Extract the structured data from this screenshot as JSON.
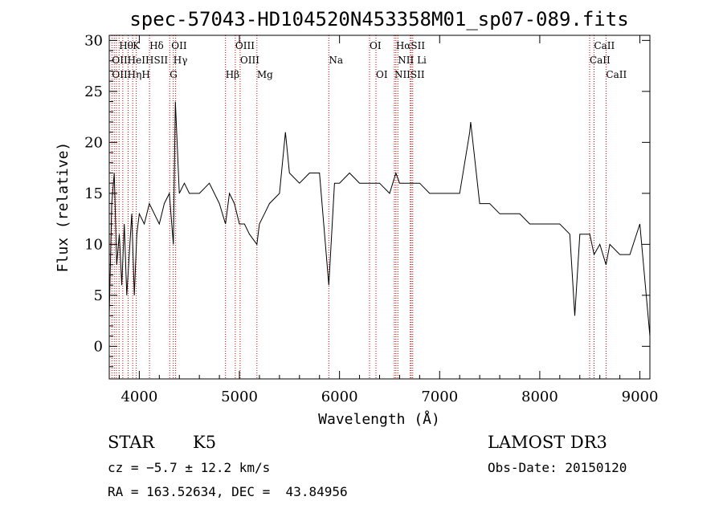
{
  "chart_data": {
    "type": "line",
    "title": "spec-57043-HD104520N453358M01_sp07-089.fits",
    "xlabel": "Wavelength (Å)",
    "ylabel": "Flux (relative)",
    "xlim": [
      3700,
      9100
    ],
    "ylim": [
      -3.2,
      30.5
    ],
    "xticks": [
      4000,
      5000,
      6000,
      7000,
      8000,
      9000
    ],
    "yticks": [
      0,
      5,
      10,
      15,
      20,
      25,
      30
    ],
    "grid": false,
    "series": [
      {
        "x": [
          3700,
          3725,
          3750,
          3775,
          3800,
          3825,
          3850,
          3875,
          3900,
          3925,
          3950,
          3975,
          4000,
          4050,
          4100,
          4150,
          4200,
          4250,
          4300,
          4340,
          4360,
          4400,
          4450,
          4500,
          4600,
          4700,
          4800,
          4861,
          4900,
          4950,
          5000,
          5050,
          5100,
          5175,
          5200,
          5250,
          5300,
          5400,
          5460,
          5500,
          5600,
          5700,
          5800,
          5893,
          5950,
          6000,
          6100,
          6200,
          6300,
          6400,
          6500,
          6563,
          6600,
          6700,
          6800,
          6900,
          7000,
          7100,
          7200,
          7300,
          7310,
          7400,
          7500,
          7600,
          7700,
          7800,
          7900,
          8000,
          8100,
          8200,
          8300,
          8350,
          8400,
          8500,
          8542,
          8600,
          8662,
          8700,
          8800,
          8900,
          9000,
          9100
        ],
        "y": [
          3,
          14,
          17,
          8,
          11,
          6,
          12,
          5,
          9,
          13,
          5,
          11,
          13,
          12,
          14,
          13,
          12,
          14,
          15,
          10,
          24,
          15,
          16,
          15,
          15,
          16,
          14,
          12,
          15,
          14,
          12,
          12,
          11,
          10,
          12,
          13,
          14,
          15,
          21,
          17,
          16,
          17,
          17,
          6,
          16,
          16,
          17,
          16,
          16,
          16,
          15,
          17,
          16,
          16,
          16,
          15,
          15,
          15,
          15,
          21,
          22,
          14,
          14,
          13,
          13,
          13,
          12,
          12,
          12,
          12,
          11,
          3,
          11,
          11,
          9,
          10,
          8,
          10,
          9,
          9,
          12,
          1
        ]
      }
    ],
    "line_markers": [
      {
        "name": "Hθ",
        "wl": 3798,
        "row": 0
      },
      {
        "name": "K",
        "wl": 3934,
        "row": 0
      },
      {
        "name": "Hδ",
        "wl": 4102,
        "row": 0
      },
      {
        "name": "OII",
        "wl": 4320,
        "row": 0
      },
      {
        "name": "OIII",
        "wl": 4959,
        "row": 0
      },
      {
        "name": "OI",
        "wl": 6300,
        "row": 0
      },
      {
        "name": "HαSII",
        "wl": 6563,
        "row": 0
      },
      {
        "name": "CaII",
        "wl": 8542,
        "row": 0
      },
      {
        "name": "OIIHeIHSII",
        "wl": 3727,
        "row": 1
      },
      {
        "name": "Hγ",
        "wl": 4340,
        "row": 1
      },
      {
        "name": "OIII",
        "wl": 5007,
        "row": 1
      },
      {
        "name": "Na",
        "wl": 5893,
        "row": 1
      },
      {
        "name": "NII Li",
        "wl": 6583,
        "row": 1
      },
      {
        "name": "CaII",
        "wl": 8498,
        "row": 1
      },
      {
        "name": "OIIHηH",
        "wl": 3727,
        "row": 2
      },
      {
        "name": "G",
        "wl": 4304,
        "row": 2
      },
      {
        "name": "Hβ",
        "wl": 4861,
        "row": 2
      },
      {
        "name": "Mg",
        "wl": 5175,
        "row": 2
      },
      {
        "name": "OI",
        "wl": 6364,
        "row": 2
      },
      {
        "name": "NIISII",
        "wl": 6548,
        "row": 2
      },
      {
        "name": "CaII",
        "wl": 8662,
        "row": 2
      }
    ],
    "marker_lines_wl": [
      3727,
      3750,
      3771,
      3798,
      3835,
      3889,
      3934,
      3970,
      4102,
      4304,
      4340,
      4363,
      4861,
      4959,
      5007,
      5175,
      5893,
      6300,
      6364,
      6548,
      6563,
      6583,
      6707,
      6716,
      6731,
      8498,
      8542,
      8662
    ],
    "marker_color": "#cc0000"
  },
  "info": {
    "object_class": "STAR",
    "subclass": "K5",
    "survey": "LAMOST DR3",
    "cz": "cz = −5.7 ± 12.2 km/s",
    "obs_date": "Obs-Date: 20150120",
    "coords": "RA = 163.52634, DEC =  43.84956"
  }
}
